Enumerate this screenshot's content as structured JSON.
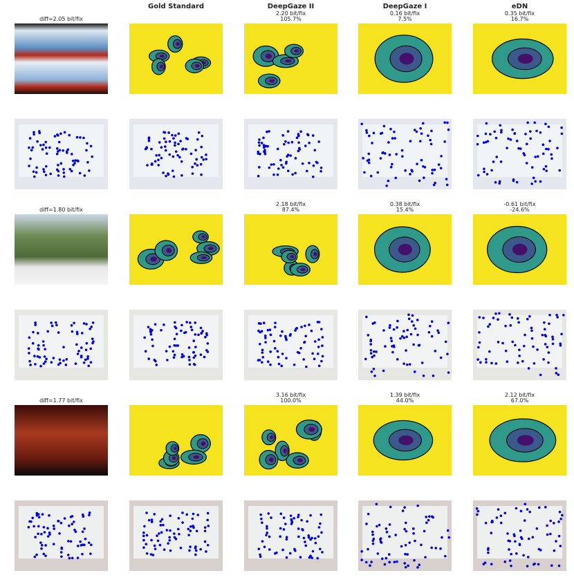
{
  "columns": [
    "Gold Standard",
    "DeepGaze II",
    "DeepGaze I",
    "eDN"
  ],
  "images": [
    {
      "diff": "diff=2.05 bit/fix",
      "models": [
        {
          "bits": "2.20 bit/fix",
          "percent": "105.7%"
        },
        {
          "bits": "0.16 bit/fix",
          "percent": "7.5%"
        },
        {
          "bits": "0.35 bit/fix",
          "percent": "16.7%"
        }
      ]
    },
    {
      "diff": "diff=1.80 bit/fix",
      "models": [
        {
          "bits": "2.18 bit/fix",
          "percent": "87.4%"
        },
        {
          "bits": "0.38 bit/fix",
          "percent": "15.4%"
        },
        {
          "bits": "-0.61 bit/fix",
          "percent": "-24.6%"
        }
      ]
    },
    {
      "diff": "diff=1.77 bit/fix",
      "models": [
        {
          "bits": "3.16 bit/fix",
          "percent": "100.0%"
        },
        {
          "bits": "1.39 bit/fix",
          "percent": "44.0%"
        },
        {
          "bits": "2.12 bit/fix",
          "percent": "67.0%"
        }
      ]
    }
  ]
}
